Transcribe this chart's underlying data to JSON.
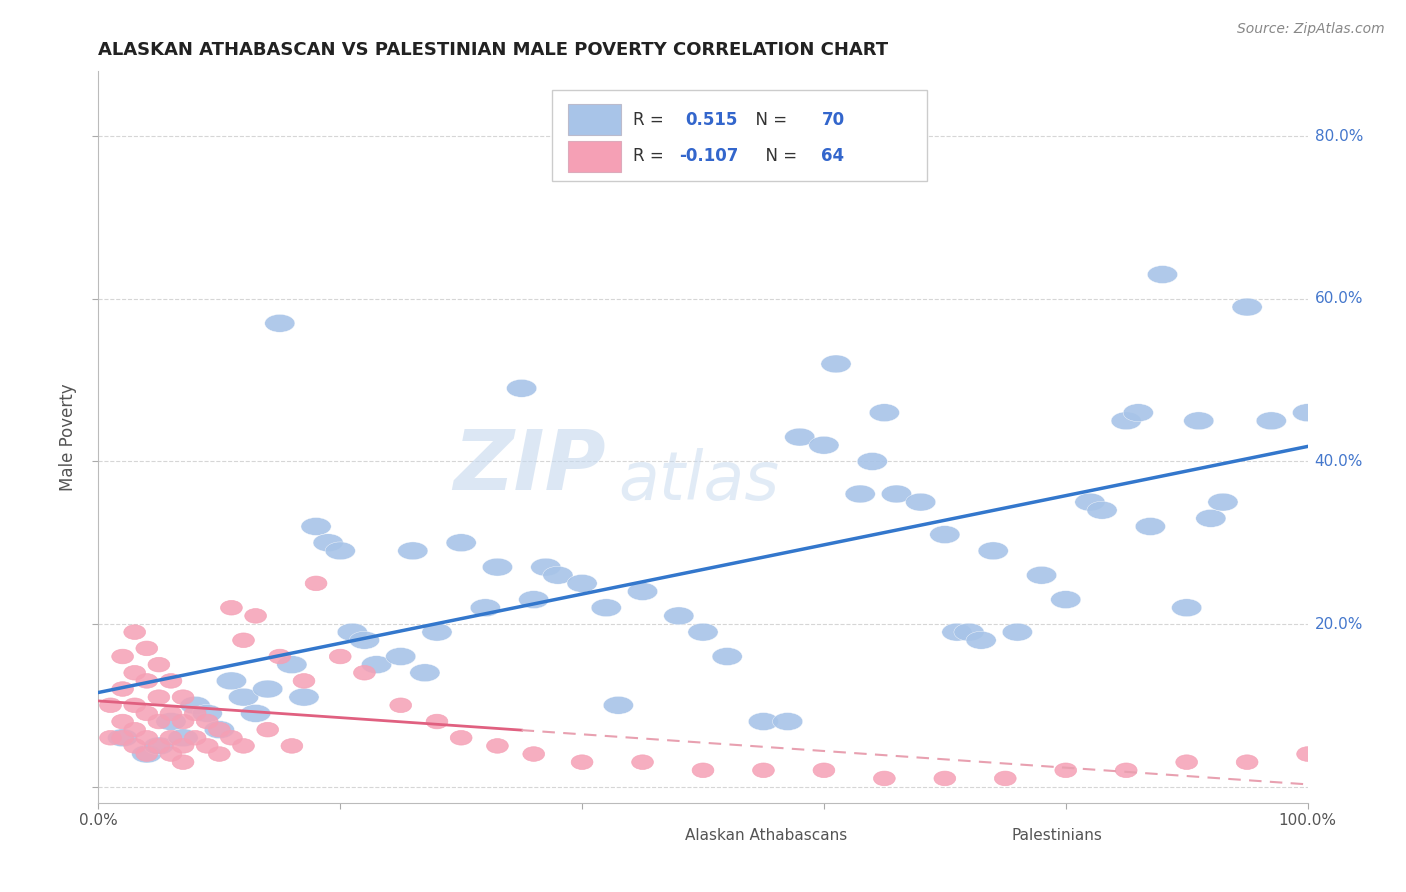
{
  "title": "ALASKAN ATHABASCAN VS PALESTINIAN MALE POVERTY CORRELATION CHART",
  "source": "Source: ZipAtlas.com",
  "ylabel": "Male Poverty",
  "watermark_zip": "ZIP",
  "watermark_atlas": "atlas",
  "blue_color": "#a8c4e8",
  "pink_color": "#f5a0b5",
  "blue_line_color": "#3377cc",
  "pink_line_solid_color": "#e06080",
  "pink_line_dash_color": "#e8a0b0",
  "grid_color": "#cccccc",
  "title_color": "#222222",
  "xlim": [
    0.0,
    1.0
  ],
  "ylim": [
    -0.02,
    0.88
  ],
  "yticks": [
    0.0,
    0.2,
    0.4,
    0.6,
    0.8
  ],
  "ytick_labels": [
    "",
    "20.0%",
    "40.0%",
    "60.0%",
    "80.0%"
  ],
  "xtick_labels": [
    "0.0%",
    "",
    "",
    "",
    "",
    "100.0%"
  ],
  "blue_scatter": [
    [
      0.02,
      0.06
    ],
    [
      0.04,
      0.04
    ],
    [
      0.05,
      0.05
    ],
    [
      0.06,
      0.08
    ],
    [
      0.07,
      0.06
    ],
    [
      0.08,
      0.1
    ],
    [
      0.09,
      0.09
    ],
    [
      0.1,
      0.07
    ],
    [
      0.11,
      0.13
    ],
    [
      0.12,
      0.11
    ],
    [
      0.13,
      0.09
    ],
    [
      0.14,
      0.12
    ],
    [
      0.15,
      0.57
    ],
    [
      0.16,
      0.15
    ],
    [
      0.17,
      0.11
    ],
    [
      0.18,
      0.32
    ],
    [
      0.19,
      0.3
    ],
    [
      0.2,
      0.29
    ],
    [
      0.21,
      0.19
    ],
    [
      0.22,
      0.18
    ],
    [
      0.23,
      0.15
    ],
    [
      0.25,
      0.16
    ],
    [
      0.26,
      0.29
    ],
    [
      0.27,
      0.14
    ],
    [
      0.28,
      0.19
    ],
    [
      0.3,
      0.3
    ],
    [
      0.32,
      0.22
    ],
    [
      0.33,
      0.27
    ],
    [
      0.35,
      0.49
    ],
    [
      0.36,
      0.23
    ],
    [
      0.37,
      0.27
    ],
    [
      0.38,
      0.26
    ],
    [
      0.4,
      0.25
    ],
    [
      0.42,
      0.22
    ],
    [
      0.43,
      0.1
    ],
    [
      0.45,
      0.24
    ],
    [
      0.48,
      0.21
    ],
    [
      0.5,
      0.19
    ],
    [
      0.52,
      0.16
    ],
    [
      0.55,
      0.08
    ],
    [
      0.57,
      0.08
    ],
    [
      0.58,
      0.43
    ],
    [
      0.6,
      0.42
    ],
    [
      0.61,
      0.52
    ],
    [
      0.63,
      0.36
    ],
    [
      0.64,
      0.4
    ],
    [
      0.65,
      0.46
    ],
    [
      0.66,
      0.36
    ],
    [
      0.68,
      0.35
    ],
    [
      0.7,
      0.31
    ],
    [
      0.71,
      0.19
    ],
    [
      0.72,
      0.19
    ],
    [
      0.73,
      0.18
    ],
    [
      0.74,
      0.29
    ],
    [
      0.76,
      0.19
    ],
    [
      0.78,
      0.26
    ],
    [
      0.8,
      0.23
    ],
    [
      0.82,
      0.35
    ],
    [
      0.83,
      0.34
    ],
    [
      0.85,
      0.45
    ],
    [
      0.86,
      0.46
    ],
    [
      0.87,
      0.32
    ],
    [
      0.88,
      0.63
    ],
    [
      0.9,
      0.22
    ],
    [
      0.91,
      0.45
    ],
    [
      0.92,
      0.33
    ],
    [
      0.93,
      0.35
    ],
    [
      0.95,
      0.59
    ],
    [
      0.97,
      0.45
    ],
    [
      1.0,
      0.46
    ]
  ],
  "pink_scatter": [
    [
      0.01,
      0.1
    ],
    [
      0.01,
      0.06
    ],
    [
      0.02,
      0.16
    ],
    [
      0.02,
      0.12
    ],
    [
      0.02,
      0.08
    ],
    [
      0.02,
      0.06
    ],
    [
      0.03,
      0.19
    ],
    [
      0.03,
      0.14
    ],
    [
      0.03,
      0.1
    ],
    [
      0.03,
      0.07
    ],
    [
      0.03,
      0.05
    ],
    [
      0.04,
      0.17
    ],
    [
      0.04,
      0.13
    ],
    [
      0.04,
      0.09
    ],
    [
      0.04,
      0.06
    ],
    [
      0.04,
      0.04
    ],
    [
      0.05,
      0.15
    ],
    [
      0.05,
      0.11
    ],
    [
      0.05,
      0.08
    ],
    [
      0.05,
      0.05
    ],
    [
      0.06,
      0.13
    ],
    [
      0.06,
      0.09
    ],
    [
      0.06,
      0.06
    ],
    [
      0.06,
      0.04
    ],
    [
      0.07,
      0.11
    ],
    [
      0.07,
      0.08
    ],
    [
      0.07,
      0.05
    ],
    [
      0.07,
      0.03
    ],
    [
      0.08,
      0.09
    ],
    [
      0.08,
      0.06
    ],
    [
      0.09,
      0.08
    ],
    [
      0.09,
      0.05
    ],
    [
      0.1,
      0.07
    ],
    [
      0.1,
      0.04
    ],
    [
      0.11,
      0.22
    ],
    [
      0.11,
      0.06
    ],
    [
      0.12,
      0.18
    ],
    [
      0.12,
      0.05
    ],
    [
      0.13,
      0.21
    ],
    [
      0.14,
      0.07
    ],
    [
      0.15,
      0.16
    ],
    [
      0.16,
      0.05
    ],
    [
      0.17,
      0.13
    ],
    [
      0.18,
      0.25
    ],
    [
      0.2,
      0.16
    ],
    [
      0.22,
      0.14
    ],
    [
      0.25,
      0.1
    ],
    [
      0.28,
      0.08
    ],
    [
      0.3,
      0.06
    ],
    [
      0.33,
      0.05
    ],
    [
      0.36,
      0.04
    ],
    [
      0.4,
      0.03
    ],
    [
      0.45,
      0.03
    ],
    [
      0.5,
      0.02
    ],
    [
      0.55,
      0.02
    ],
    [
      0.6,
      0.02
    ],
    [
      0.65,
      0.01
    ],
    [
      0.7,
      0.01
    ],
    [
      0.75,
      0.01
    ],
    [
      0.8,
      0.02
    ],
    [
      0.85,
      0.02
    ],
    [
      0.9,
      0.03
    ],
    [
      0.95,
      0.03
    ],
    [
      1.0,
      0.04
    ]
  ]
}
